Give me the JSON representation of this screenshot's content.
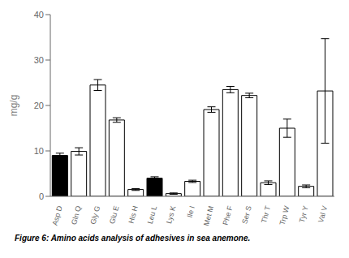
{
  "chart_data": {
    "type": "bar",
    "title": "Figure 6: Amino acids analysis of adhesives in sea anemone.",
    "categories": [
      "Asp D",
      "Gln Q",
      "Gly G",
      "Glu E",
      "His H",
      "Leu L",
      "Lys K",
      "Ile I",
      "Met M",
      "Phe F",
      "Ser S",
      "Thr T",
      "Trp W",
      "Tyr Y",
      "Val V"
    ],
    "values": [
      9.0,
      9.9,
      24.5,
      16.8,
      1.5,
      4.0,
      0.6,
      3.3,
      19.1,
      23.5,
      22.2,
      3.0,
      15.0,
      2.2,
      23.2
    ],
    "errors": [
      0.5,
      0.8,
      1.2,
      0.5,
      0.2,
      0.3,
      0.15,
      0.25,
      0.6,
      0.7,
      0.5,
      0.4,
      2.0,
      0.3,
      11.5
    ],
    "colors": [
      "black",
      "white",
      "white",
      "white",
      "white",
      "black",
      "white",
      "white",
      "white",
      "white",
      "white",
      "white",
      "white",
      "white",
      "white"
    ],
    "color": "black",
    "y_label": "mg/g",
    "ylim": [
      0,
      40
    ],
    "yticks": [
      0,
      10,
      20,
      30,
      40
    ],
    "grid": false
  }
}
